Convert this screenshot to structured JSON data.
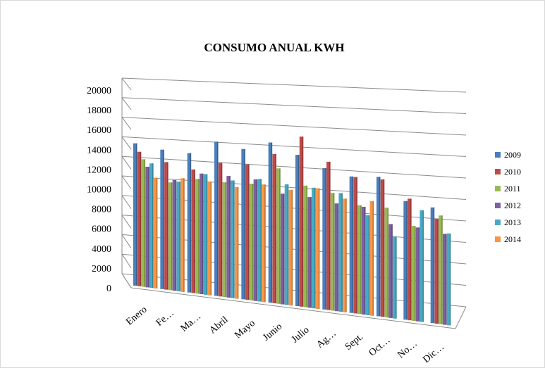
{
  "chart_data": {
    "type": "bar",
    "title": "CONSUMO ANUAL KWH",
    "xlabel": "",
    "ylabel": "",
    "ylim": [
      0,
      20000
    ],
    "yticks": [
      "0",
      "2000",
      "4000",
      "6000",
      "8000",
      "10000",
      "12000",
      "14000",
      "16000",
      "18000",
      "20000"
    ],
    "categories": [
      "Enero",
      "Fe…",
      "Ma…",
      "Abril",
      "Mayo",
      "Junio",
      "Julio",
      "Ag…",
      "Sept.",
      "Oct…",
      "No…",
      "Dic…"
    ],
    "series": [
      {
        "name": "2009",
        "color": "#4a7ebb",
        "values": [
          14400,
          14100,
          14100,
          15600,
          15200,
          16200,
          15300,
          14300,
          13800,
          14100,
          12000,
          11700
        ]
      },
      {
        "name": "2010",
        "color": "#be4b48",
        "values": [
          13600,
          12900,
          12500,
          13500,
          13700,
          15100,
          17200,
          15000,
          13800,
          13900,
          12300,
          10600
        ]
      },
      {
        "name": "2011",
        "color": "#98b954",
        "values": [
          12900,
          10900,
          11600,
          11600,
          11800,
          13700,
          12300,
          11900,
          11000,
          11100,
          9600,
          11000
        ]
      },
      {
        "name": "2012",
        "color": "#7d60a0",
        "values": [
          12200,
          11200,
          12200,
          12300,
          12300,
          11200,
          11200,
          10900,
          10900,
          9500,
          9500,
          9200
        ]
      },
      {
        "name": "2013",
        "color": "#46aac5",
        "values": [
          12600,
          11100,
          12200,
          11900,
          12400,
          12200,
          12200,
          12000,
          10100,
          8300,
          11300,
          9300
        ]
      },
      {
        "name": "2014",
        "color": "#f79646",
        "values": [
          11200,
          11500,
          11500,
          11300,
          11900,
          11700,
          12200,
          11500,
          11600,
          null,
          null,
          null
        ]
      }
    ],
    "grid": true,
    "legend": "right"
  }
}
